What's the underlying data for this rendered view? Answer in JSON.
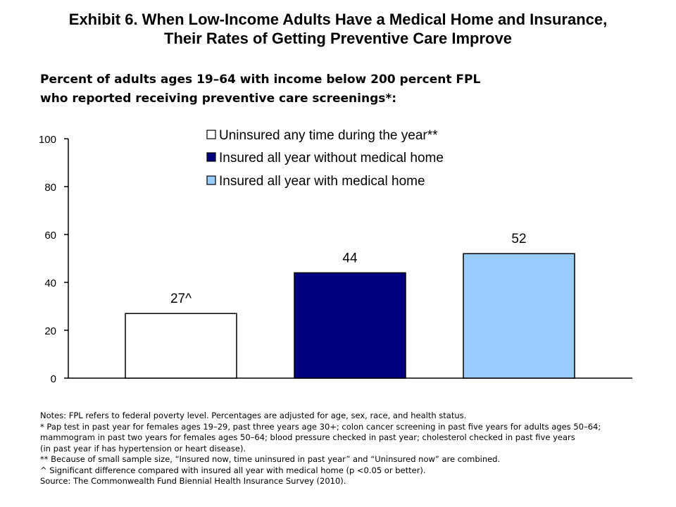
{
  "title": {
    "line1": "Exhibit 6. When Low-Income Adults Have a Medical Home and Insurance,",
    "line2": "Their Rates of Getting Preventive Care Improve"
  },
  "subtitle": {
    "line1": "Percent of adults ages 19–64 with income below 200 percent FPL",
    "line2": "who reported receiving preventive care screenings*:"
  },
  "chart_data": {
    "type": "bar",
    "title": "",
    "xlabel": "",
    "ylabel": "",
    "ylim": [
      0,
      100
    ],
    "yticks": [
      0,
      20,
      40,
      60,
      80,
      100
    ],
    "grid": false,
    "legend_position": "top",
    "series": [
      {
        "name": "Uninsured any time during the year**",
        "value": 27,
        "label": "27^",
        "color": "#ffffff"
      },
      {
        "name": "Insured all year without medical home",
        "value": 44,
        "label": "44",
        "color": "#000080"
      },
      {
        "name": "Insured all year with medical home",
        "value": 52,
        "label": "52",
        "color": "#99ccff"
      }
    ]
  },
  "notes": [
    "Notes: FPL refers to federal poverty level. Percentages are adjusted for age, sex, race, and health status.",
    "* Pap test in past year for females ages 19–29, past three years age 30+; colon cancer screening in past five years for adults ages 50–64;",
    "mammogram in past two years for females ages 50–64; blood pressure checked in past year; cholesterol checked in past five years",
    "(in past year if has hypertension or heart disease).",
    "** Because of small sample size, “Insured now, time uninsured in past year” and “Uninsured now” are combined.",
    "^ Significant difference compared with insured all year with medical home (p <0.05 or better).",
    "Source: The Commonwealth Fund Biennial Health Insurance Survey (2010)."
  ]
}
